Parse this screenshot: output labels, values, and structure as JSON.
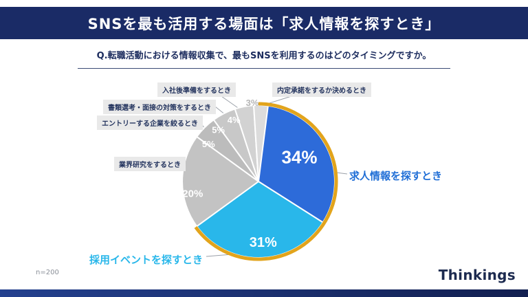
{
  "header": {
    "title": "SNSを最も活用する場面は「求人情報を探すとき」"
  },
  "question": {
    "text": "Q.転職活動における情報収集で、最もSNSを利用するのはどのタイミングですか。"
  },
  "footer": {
    "sample_size": "n=200",
    "brand": "Thinkings"
  },
  "colors": {
    "navy": "#1a2b66",
    "blue": "#2d6bd9",
    "cyan": "#29b7ea",
    "gold": "#e2a41c",
    "gray": "#c3c3c3"
  },
  "chart_data": {
    "type": "pie",
    "title": "Q.転職活動における情報収集で、最もSNSを利用するのはどのタイミングですか。",
    "start_angle_deg": 0,
    "direction": "clockwise",
    "highlight": {
      "outline_color": "#e2a41c",
      "span_pct": 65,
      "highlighted_labels": [
        "求人情報を探すとき",
        "採用イベントを探すとき"
      ]
    },
    "slices": [
      {
        "label": "求人情報を探すとき",
        "value": 34,
        "pct_label": "34%",
        "color": "#2d6bd9",
        "pct_size": 26,
        "pct_color": "#ffffff",
        "pct_r": 0.55,
        "pct_dx": 6,
        "pct_dy": -6
      },
      {
        "label": "採用イベントを探すとき",
        "value": 31,
        "pct_label": "31%",
        "color": "#29b7ea",
        "pct_size": 20,
        "pct_color": "#ffffff",
        "pct_r": 0.8,
        "pct_dx": 4,
        "pct_dy": 0
      },
      {
        "label": "業界研究をするとき",
        "value": 20,
        "pct_label": "20%",
        "color": "#c3c3c3",
        "pct_size": 15,
        "pct_color": "#ffffff",
        "pct_r": 0.88,
        "pct_dx": 2,
        "pct_dy": 18
      },
      {
        "label": "エントリーする企業を絞るとき",
        "value": 5,
        "pct_label": "5%",
        "color": "#bcbcbc",
        "pct_size": 13,
        "pct_color": "#ffffff",
        "pct_r": 0.85,
        "pct_dx": -6,
        "pct_dy": 12
      },
      {
        "label": "書類選考・面接の対策をするとき",
        "value": 5,
        "pct_label": "5%",
        "color": "#c8c8c8",
        "pct_size": 13,
        "pct_color": "#ffffff",
        "pct_r": 0.92,
        "pct_dx": -12,
        "pct_dy": 16
      },
      {
        "label": "入社後準備をするとき",
        "value": 4,
        "pct_label": "4%",
        "color": "#d2d2d2",
        "pct_size": 13,
        "pct_color": "#ffffff",
        "pct_r": 0.95,
        "pct_dx": -16,
        "pct_dy": 14
      },
      {
        "label": "内定承諾をするか決めるとき",
        "value": 3,
        "pct_label": "3%",
        "color": "#dcdcdc",
        "pct_size": 13,
        "pct_color": "#b5b5b5",
        "pct_r": 1.15,
        "pct_dx": -13,
        "pct_dy": 13
      }
    ]
  }
}
